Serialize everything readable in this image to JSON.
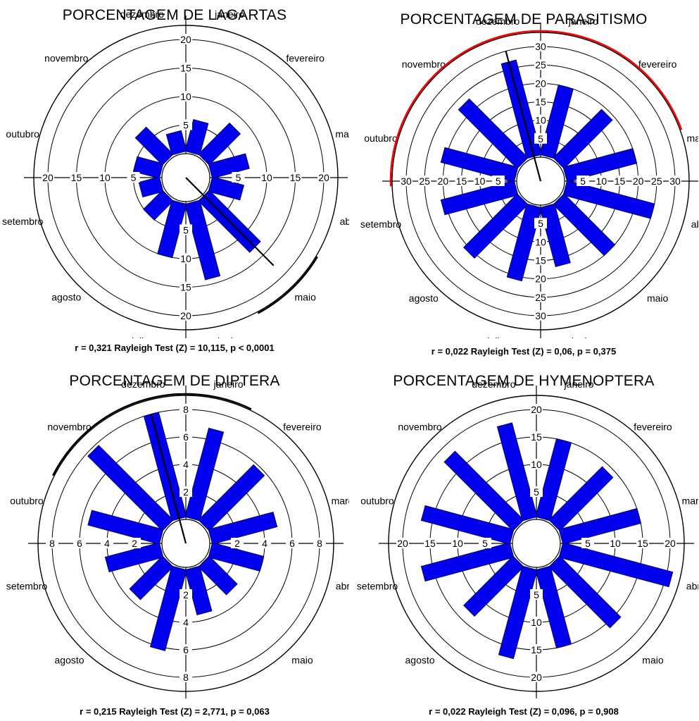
{
  "months": [
    "janeiro",
    "fevereiro",
    "março",
    "abril",
    "maio",
    "junho",
    "julho",
    "agosto",
    "setembro",
    "outubro",
    "novembro",
    "dezembro"
  ],
  "colors": {
    "bar": "#0000ee",
    "bar_edge": "#000000",
    "arc_lagartas": "#000000",
    "arc_parasitismo": "#ff0000",
    "arc_diptera": "#000000"
  },
  "chart_data": [
    {
      "type": "rose",
      "title": "PORCENTAGEM DE LAGARTAS",
      "stat_text": "r = 0,321 Rayleigh Test (Z) = 10,115, p < 0,0001",
      "rmax": 20,
      "ticks": [
        5,
        10,
        15,
        20
      ],
      "grid_rings": [
        5,
        10,
        15,
        20
      ],
      "values": [
        6,
        8,
        7,
        6,
        13,
        14,
        10,
        5,
        4,
        5,
        7,
        4
      ],
      "mean_angle_deg": 135,
      "mean_length": 0.321,
      "ci_arc": {
        "start_deg": 121,
        "end_deg": 152
      },
      "ci_color": "arc_lagartas"
    },
    {
      "type": "rose",
      "title": "PORCENTAGEM DE PARASITISMO",
      "stat_text": "r = 0,022 Rayleigh Test (Z) = 0,06, p = 0,375",
      "rmax": 30,
      "ticks": [
        5,
        10,
        15,
        20,
        25,
        30
      ],
      "grid_rings": [
        5,
        10,
        15,
        20,
        25,
        30
      ],
      "values": [
        20,
        19,
        20,
        25,
        20,
        17,
        21,
        21,
        21,
        21,
        23,
        27
      ],
      "mean_angle_deg": 345,
      "mean_length": 1.0,
      "ci_arc": {
        "start_deg": 268,
        "end_deg": 70
      },
      "ci_color": "arc_parasitismo"
    },
    {
      "type": "rose",
      "title": "PORCENTAGEM DE DIPTERA",
      "stat_text": "r = 0,215 Rayleigh Test (Z) = 2,771, p = 0,063",
      "rmax": 8,
      "ticks": [
        2,
        4,
        6,
        8
      ],
      "grid_rings": [
        2,
        4,
        6,
        8
      ],
      "values": [
        6.8,
        5.8,
        5,
        4,
        3,
        3.5,
        6.2,
        3.5,
        4.2,
        5.5,
        7.8,
        8
      ],
      "mean_angle_deg": 345,
      "mean_length": 1.0,
      "ci_arc": {
        "start_deg": 297,
        "end_deg": 26
      },
      "ci_color": "arc_diptera"
    },
    {
      "type": "rose",
      "title": "PORCENTAGEM DE HYMENOPTERA",
      "stat_text": "r = 0,022 Rayleigh Test (Z) = 0,096, p = 0,908",
      "rmax": 20,
      "ticks": [
        5,
        10,
        15,
        20
      ],
      "grid_rings": [
        5,
        10,
        15,
        20
      ],
      "values": [
        15,
        14,
        15,
        21,
        16,
        15,
        17,
        13,
        17,
        17,
        18,
        18
      ],
      "mean_angle_deg": null,
      "mean_length": 0,
      "ci_arc": null,
      "ci_color": null
    }
  ]
}
